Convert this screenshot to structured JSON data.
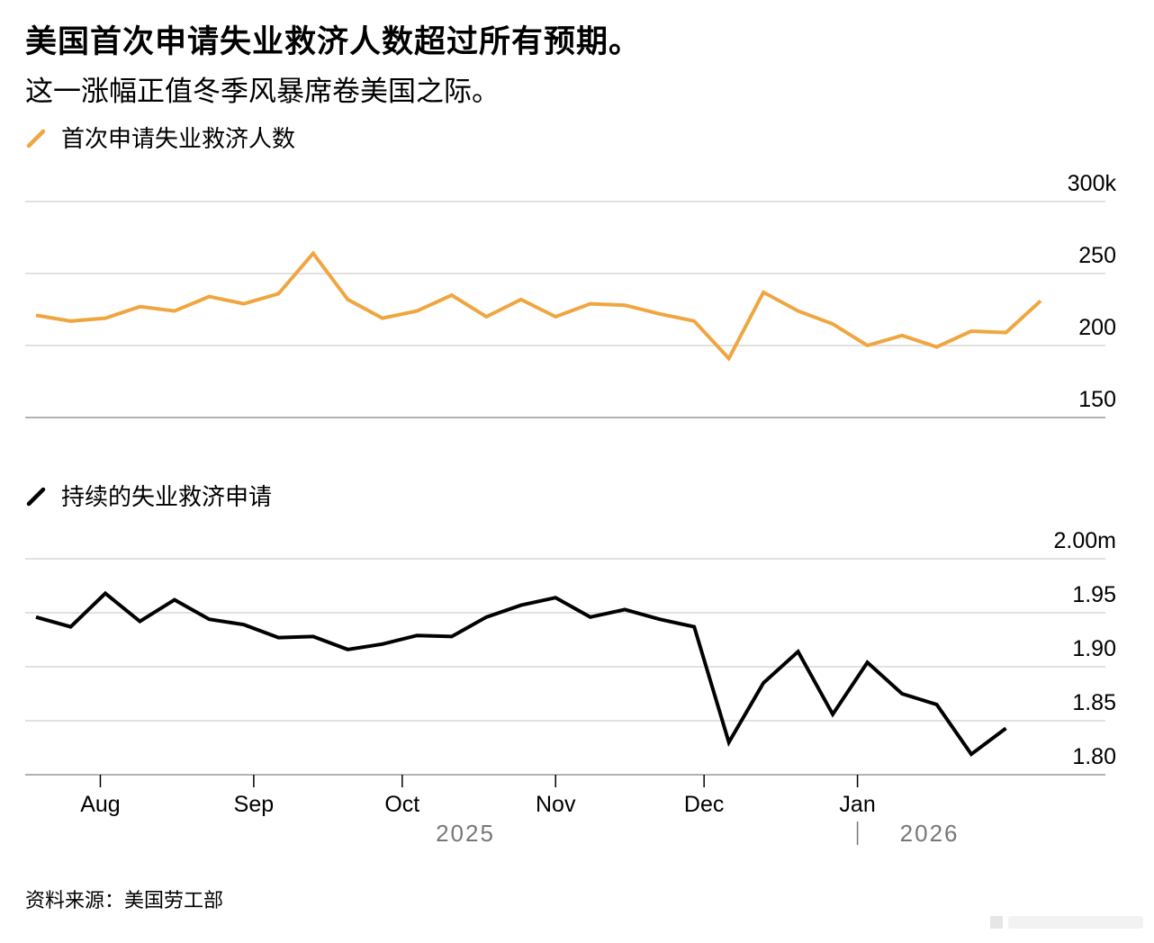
{
  "header": {
    "title": "美国首次申请失业救济人数超过所有预期。",
    "subtitle": "这一涨幅正值冬季风暴席卷美国之际。"
  },
  "source": "资料来源：美国劳工部",
  "colors": {
    "initial": "#F0A640",
    "continuing": "#000000",
    "grid": "#cfcfcf",
    "axis": "#999999"
  },
  "chart_data": [
    {
      "type": "line",
      "legend": "首次申请失业救济人数",
      "unit": "k",
      "ylim": [
        150,
        300
      ],
      "yticks": [
        {
          "value": 300,
          "label": "300k"
        },
        {
          "value": 250,
          "label": "250"
        },
        {
          "value": 200,
          "label": "200"
        },
        {
          "value": 150,
          "label": "150"
        }
      ],
      "x": [
        "2025-07-19",
        "2025-07-26",
        "2025-08-02",
        "2025-08-09",
        "2025-08-16",
        "2025-08-23",
        "2025-08-30",
        "2025-09-06",
        "2025-09-13",
        "2025-09-20",
        "2025-09-27",
        "2025-10-04",
        "2025-10-11",
        "2025-10-18",
        "2025-10-25",
        "2025-11-01",
        "2025-11-08",
        "2025-11-15",
        "2025-11-22",
        "2025-11-29",
        "2025-12-06",
        "2025-12-13",
        "2025-12-20",
        "2025-12-27",
        "2026-01-03",
        "2026-01-10",
        "2026-01-17",
        "2026-01-24",
        "2026-01-31",
        "2026-02-07"
      ],
      "values": [
        221,
        217,
        219,
        227,
        224,
        234,
        229,
        236,
        264,
        232,
        219,
        224,
        235,
        220,
        232,
        220,
        229,
        228,
        222,
        217,
        191,
        237,
        224,
        215,
        200,
        207,
        199,
        210,
        209,
        231
      ]
    },
    {
      "type": "line",
      "legend": "持续的失业救济申请",
      "unit": "m",
      "ylim": [
        1.8,
        2.0
      ],
      "yticks": [
        {
          "value": 2.0,
          "label": "2.00m"
        },
        {
          "value": 1.95,
          "label": "1.95"
        },
        {
          "value": 1.9,
          "label": "1.90"
        },
        {
          "value": 1.85,
          "label": "1.85"
        },
        {
          "value": 1.8,
          "label": "1.80"
        }
      ],
      "x": [
        "2025-07-19",
        "2025-07-26",
        "2025-08-02",
        "2025-08-09",
        "2025-08-16",
        "2025-08-23",
        "2025-08-30",
        "2025-09-06",
        "2025-09-13",
        "2025-09-20",
        "2025-09-27",
        "2025-10-04",
        "2025-10-11",
        "2025-10-18",
        "2025-10-25",
        "2025-11-01",
        "2025-11-08",
        "2025-11-15",
        "2025-11-22",
        "2025-11-29",
        "2025-12-06",
        "2025-12-13",
        "2025-12-20",
        "2025-12-27",
        "2026-01-03",
        "2026-01-10",
        "2026-01-17",
        "2026-01-24",
        "2026-01-31"
      ],
      "values": [
        1.946,
        1.937,
        1.968,
        1.942,
        1.962,
        1.944,
        1.939,
        1.927,
        1.928,
        1.916,
        1.921,
        1.929,
        1.928,
        1.946,
        1.957,
        1.964,
        1.946,
        1.953,
        1.944,
        1.937,
        1.83,
        1.885,
        1.914,
        1.856,
        1.904,
        1.875,
        1.865,
        1.819,
        1.843
      ]
    }
  ],
  "x_axis": {
    "months": [
      {
        "date": "2025-08-01",
        "label": "Aug"
      },
      {
        "date": "2025-09-01",
        "label": "Sep"
      },
      {
        "date": "2025-10-01",
        "label": "Oct"
      },
      {
        "date": "2025-11-01",
        "label": "Nov"
      },
      {
        "date": "2025-12-01",
        "label": "Dec"
      },
      {
        "date": "2026-01-01",
        "label": "Jan"
      }
    ],
    "years": [
      {
        "label": "2025"
      },
      {
        "label": "2026"
      }
    ]
  }
}
